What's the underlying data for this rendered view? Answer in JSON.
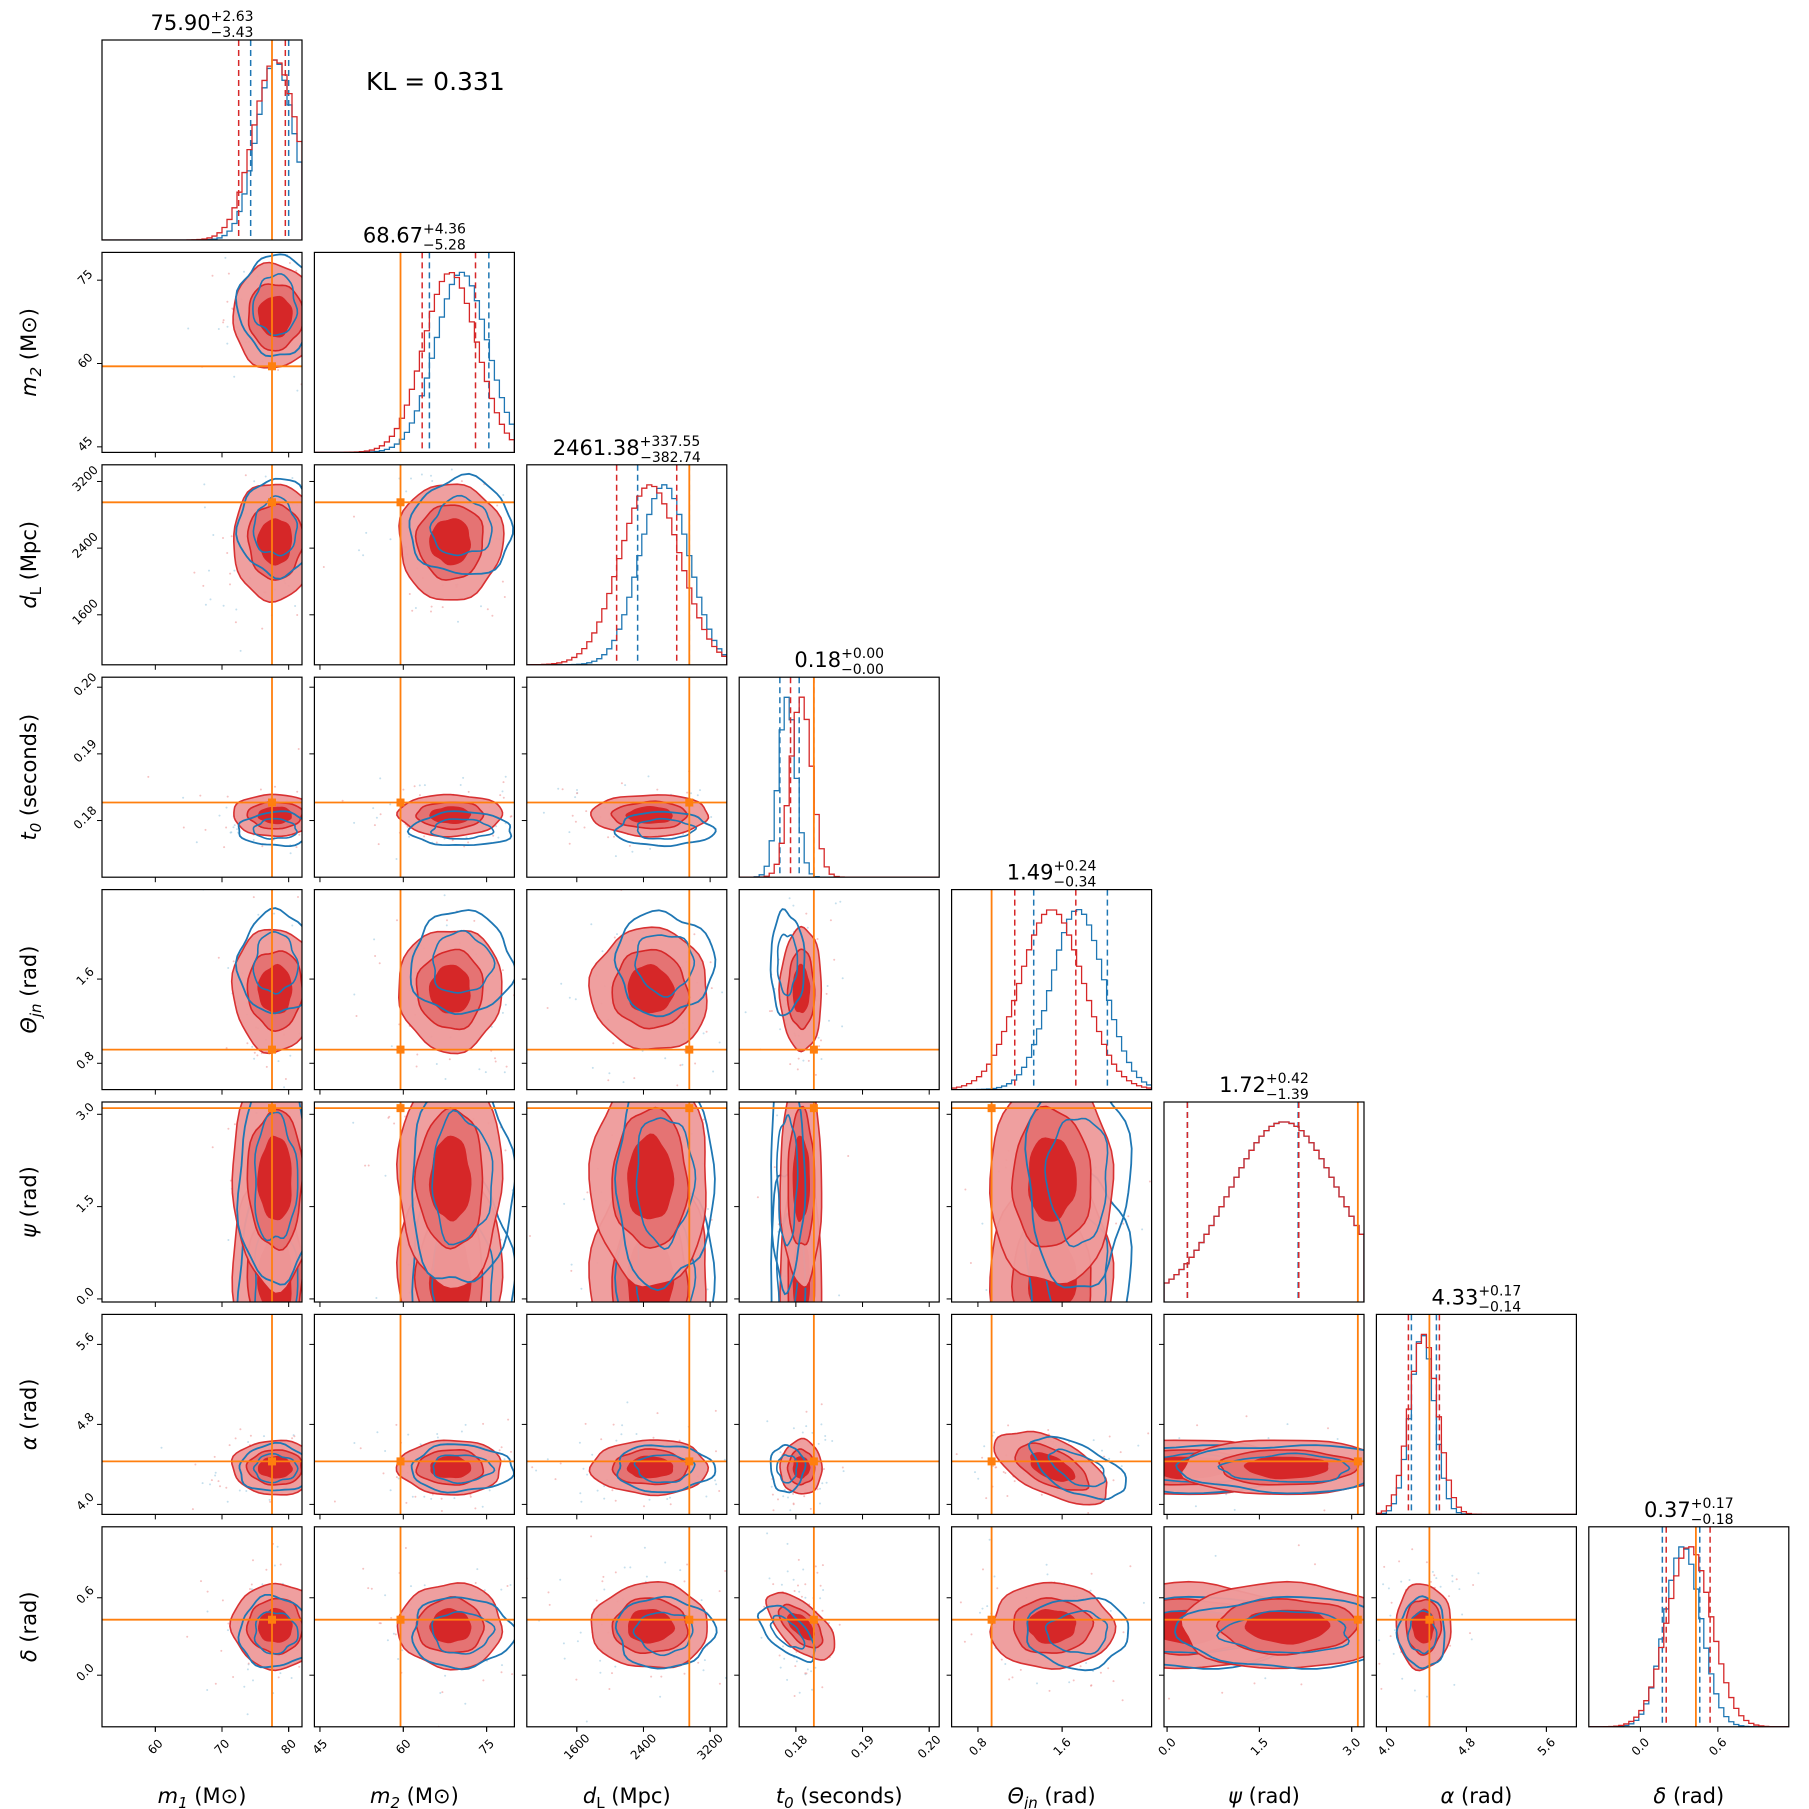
{
  "chart_data": {
    "type": "corner",
    "annotation": "KL = 0.331",
    "colors": {
      "red": "#d62728",
      "red_light": "#ef9a9a",
      "blue": "#1f77b4",
      "orange": "#ff7f0e"
    },
    "legend_entries": [],
    "params": [
      {
        "key": "m1",
        "name": "m",
        "sub": "1",
        "unit": " (M⊙)",
        "title_value": "75.90",
        "title_plus": "+2.63",
        "title_minus": "−3.43",
        "range": [
          52,
          82
        ],
        "ticks": [
          60,
          70,
          80
        ],
        "tick_labels": [
          "60",
          "70",
          "80"
        ],
        "truth": 77.5,
        "red": {
          "mean": 78,
          "sd": 3.3,
          "lo_q": 72.5,
          "hi_q": 79.5
        },
        "blue": {
          "mean": 78,
          "sd": 2.8,
          "lo_q": 74.3,
          "hi_q": 80
        }
      },
      {
        "key": "m2",
        "name": "m",
        "sub": "2",
        "unit": " (M⊙)",
        "title_value": "68.67",
        "title_plus": "+4.36",
        "title_minus": "−5.28",
        "range": [
          44,
          80
        ],
        "ticks": [
          45,
          60,
          75
        ],
        "tick_labels": [
          "45",
          "60",
          "75"
        ],
        "truth": 59.5,
        "red": {
          "mean": 68.5,
          "sd": 4.8,
          "lo_q": 63.4,
          "hi_q": 73
        },
        "blue": {
          "mean": 70.5,
          "sd": 4.7,
          "lo_q": 64.7,
          "hi_q": 75.4
        }
      },
      {
        "key": "dL",
        "name": "d",
        "sub": "L",
        "unit": " (Mpc)",
        "title_value": "2461.38",
        "title_plus": "+337.55",
        "title_minus": "−382.74",
        "range": [
          1000,
          3400
        ],
        "ticks": [
          1600,
          2400,
          3200
        ],
        "tick_labels": [
          "1600",
          "2400",
          "3200"
        ],
        "truth": 2950,
        "red": {
          "mean": 2480,
          "sd": 360,
          "lo_q": 2078,
          "hi_q": 2799
        },
        "blue": {
          "mean": 2650,
          "sd": 300,
          "lo_q": 2330,
          "hi_q": 2950
        }
      },
      {
        "key": "t0",
        "name": "t",
        "sub": "0",
        "unit": " (seconds)",
        "title_value": "0.18",
        "title_plus": "+0.00",
        "title_minus": "−0.00",
        "range": [
          0.1715,
          0.2015
        ],
        "ticks": [
          0.18,
          0.19,
          0.2
        ],
        "tick_labels": [
          "0.18",
          "0.19",
          "0.20"
        ],
        "truth": 0.1827,
        "red": {
          "mean": 0.1808,
          "sd": 0.0016,
          "lo_q": 0.1792,
          "hi_q": 0.1827
        },
        "blue": {
          "mean": 0.1787,
          "sd": 0.0013,
          "lo_q": 0.1776,
          "hi_q": 0.1805
        }
      },
      {
        "key": "theta",
        "name": "Θ",
        "sub": "jn",
        "unit": " (rad)",
        "title_value": "1.49",
        "title_plus": "+0.24",
        "title_minus": "−0.34",
        "range": [
          0.55,
          2.45
        ],
        "ticks": [
          0.8,
          1.6
        ],
        "tick_labels": [
          "0.8",
          "1.6"
        ],
        "truth": 0.93,
        "red": {
          "mean": 1.5,
          "sd": 0.3,
          "lo_q": 1.15,
          "hi_q": 1.73
        },
        "blue": {
          "mean": 1.75,
          "sd": 0.25,
          "lo_q": 1.33,
          "hi_q": 2.03
        }
      },
      {
        "key": "psi",
        "name": "ψ",
        "sub": "",
        "unit": " (rad)",
        "title_value": "1.72",
        "title_plus": "+0.42",
        "title_minus": "−1.39",
        "range": [
          -0.05,
          3.2
        ],
        "ticks": [
          0.0,
          1.5,
          3.0
        ],
        "tick_labels": [
          "0.0",
          "1.5",
          "3.0"
        ],
        "truth": 3.1,
        "red": {
          "mean": 1.9,
          "sd": 0.9,
          "lo_q": 0.33,
          "hi_q": 2.14
        },
        "blue": {
          "mean": 1.9,
          "sd": 0.9,
          "lo_q": 0.33,
          "hi_q": 2.13
        }
      },
      {
        "key": "alpha",
        "name": "α",
        "sub": "",
        "unit": " (rad)",
        "title_value": "4.33",
        "title_plus": "+0.17",
        "title_minus": "−0.14",
        "range": [
          3.9,
          5.9
        ],
        "ticks": [
          4.0,
          4.8,
          5.6
        ],
        "tick_labels": [
          "4.0",
          "4.8",
          "5.6"
        ],
        "truth": 4.43,
        "red": {
          "mean": 4.37,
          "sd": 0.14,
          "lo_q": 4.22,
          "hi_q": 4.53
        },
        "blue": {
          "mean": 4.36,
          "sd": 0.12,
          "lo_q": 4.25,
          "hi_q": 4.5
        }
      },
      {
        "key": "delta",
        "name": "δ",
        "sub": "",
        "unit": " (rad)",
        "title_value": "0.37",
        "title_plus": "+0.17",
        "title_minus": "−0.18",
        "range": [
          -0.4,
          1.15
        ],
        "ticks": [
          0.0,
          0.6
        ],
        "tick_labels": [
          "0.0",
          "0.6"
        ],
        "truth": 0.43,
        "red": {
          "mean": 0.38,
          "sd": 0.17,
          "lo_q": 0.2,
          "hi_q": 0.54
        },
        "blue": {
          "mean": 0.33,
          "sd": 0.14,
          "lo_q": 0.17,
          "hi_q": 0.46
        }
      }
    ]
  }
}
